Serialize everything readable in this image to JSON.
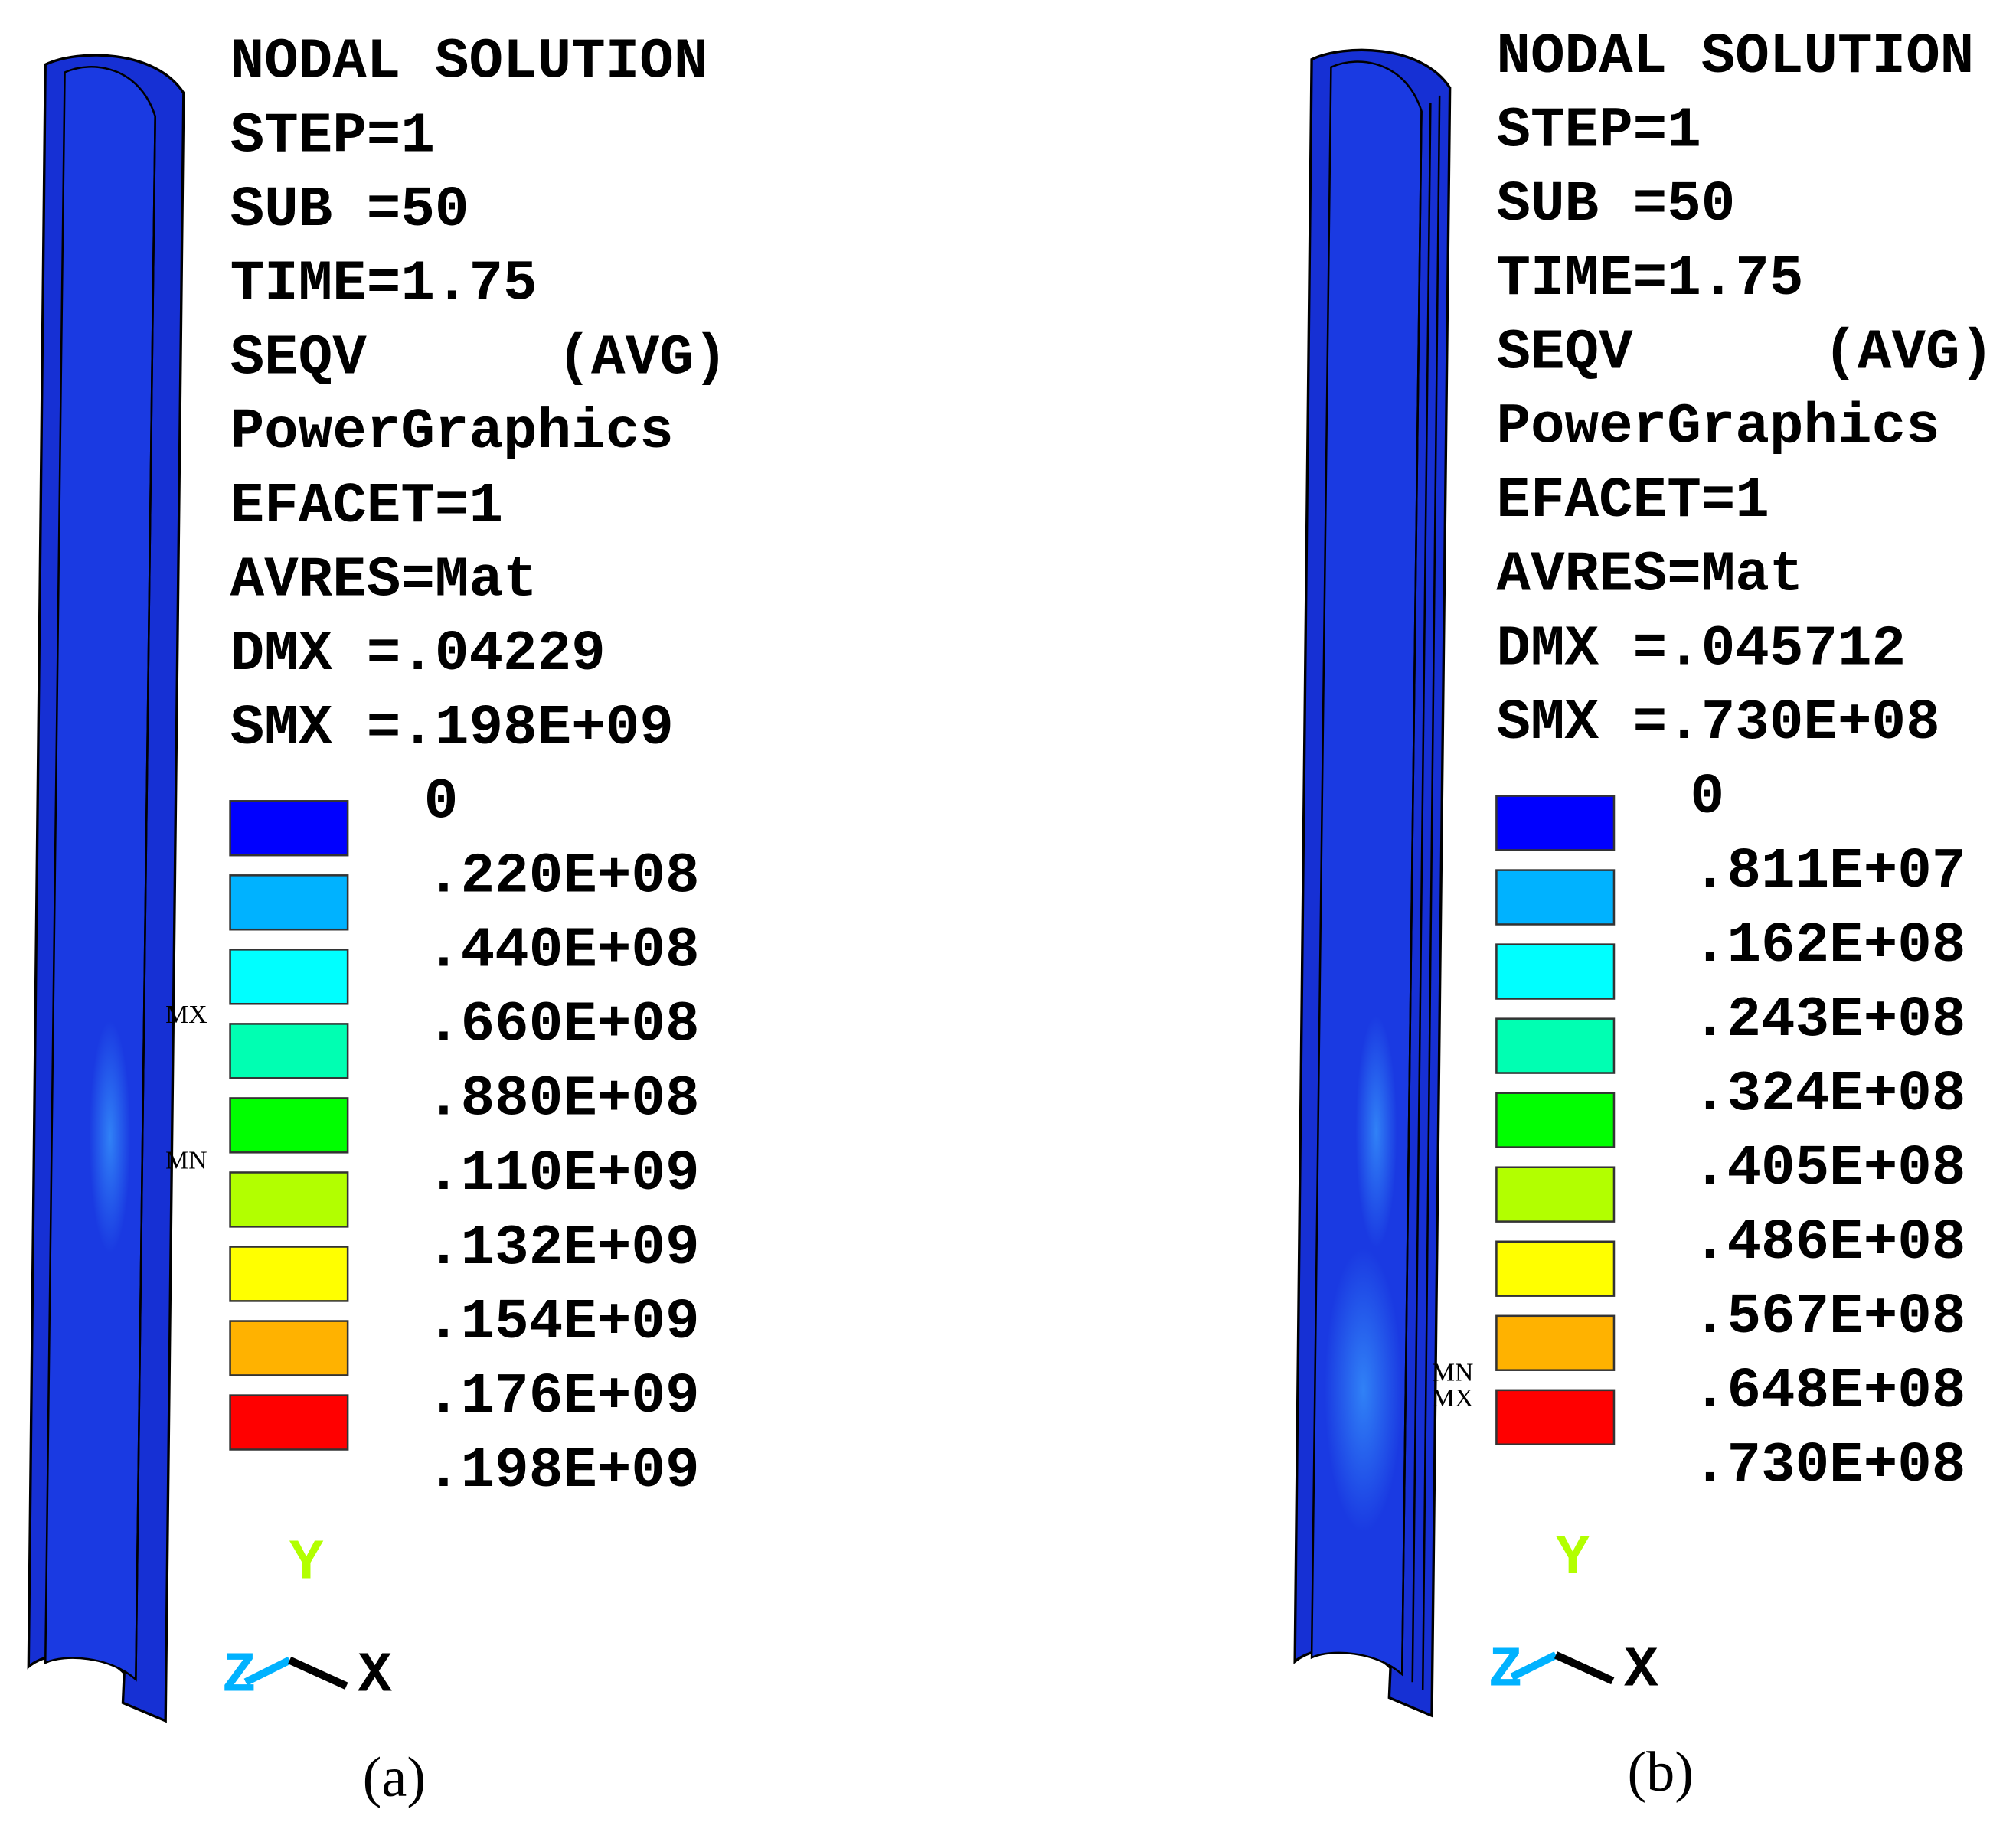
{
  "panels": [
    {
      "header_lines": [
        "NODAL SOLUTION",
        "STEP=1",
        "SUB =50",
        "TIME=1.75",
        "SEQV",
        "PowerGraphics",
        "EFACET=1",
        "AVRES=Mat",
        "DMX =.04229",
        "SMX =.198E+09"
      ],
      "avg_tag": "(AVG)",
      "legend_labels": [
        "0",
        ".220E+08",
        ".440E+08",
        ".660E+08",
        ".880E+08",
        ".110E+09",
        ".132E+09",
        ".154E+09",
        ".176E+09",
        ".198E+09"
      ],
      "markers": [
        "MX",
        "MN"
      ],
      "axes": [
        "Y",
        "Z",
        "X"
      ],
      "caption": "(a)"
    },
    {
      "header_lines": [
        "NODAL SOLUTION",
        "STEP=1",
        "SUB =50",
        "TIME=1.75",
        "SEQV",
        "PowerGraphics",
        "EFACET=1",
        "AVRES=Mat",
        "DMX =.045712",
        "SMX =.730E+08"
      ],
      "avg_tag": "(AVG)",
      "legend_labels": [
        "0",
        ".811E+07",
        ".162E+08",
        ".243E+08",
        ".324E+08",
        ".405E+08",
        ".486E+08",
        ".567E+08",
        ".648E+08",
        ".730E+08"
      ],
      "markers": [
        "MN",
        "MX"
      ],
      "axes": [
        "Y",
        "Z",
        "X"
      ],
      "caption": "(b)"
    }
  ],
  "legend_colors": [
    "#0000ff",
    "#00b2ff",
    "#00ffff",
    "#00ffb2",
    "#00ff00",
    "#b2ff00",
    "#ffff00",
    "#ffb200",
    "#ff0000"
  ],
  "axis_colors": [
    "#b2ff00",
    "#00b2ff",
    "#000000"
  ]
}
